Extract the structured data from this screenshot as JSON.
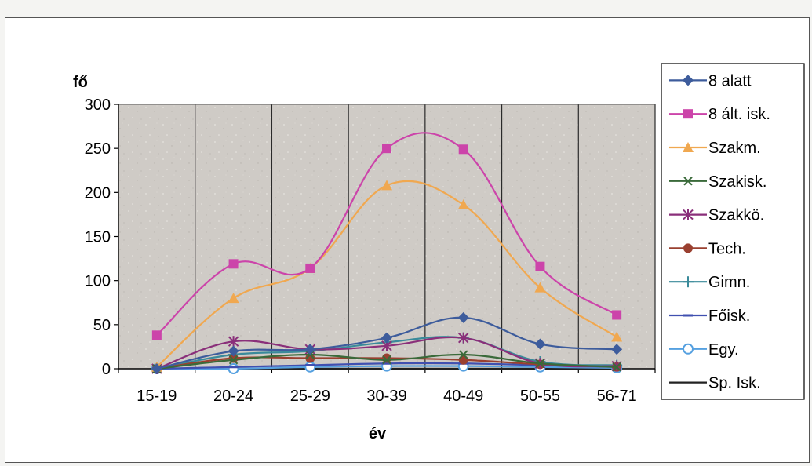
{
  "chart_data": {
    "type": "line",
    "categories": [
      "15-19",
      "20-24",
      "25-29",
      "30-39",
      "40-49",
      "50-55",
      "56-71"
    ],
    "ylabel": "fő",
    "xlabel": "év",
    "ylim": [
      0,
      300
    ],
    "yticks": [
      0,
      50,
      100,
      150,
      200,
      250,
      300
    ],
    "grid": "vertical lines on category boundaries",
    "legend_position": "right",
    "series": [
      {
        "name": "8 alatt",
        "color": "#3d5c9c",
        "marker": "diamond",
        "values": [
          0,
          20,
          22,
          35,
          58,
          28,
          22
        ]
      },
      {
        "name": "8 ált. isk.",
        "color": "#cc44aa",
        "marker": "square",
        "values": [
          38,
          119,
          114,
          250,
          249,
          116,
          61
        ]
      },
      {
        "name": "Szakm.",
        "color": "#f0a850",
        "marker": "triangle",
        "values": [
          2,
          80,
          114,
          208,
          186,
          92,
          36
        ]
      },
      {
        "name": "Szakisk.",
        "color": "#3a6a3a",
        "marker": "x",
        "values": [
          0,
          10,
          16,
          10,
          16,
          6,
          2
        ]
      },
      {
        "name": "Szakkö.",
        "color": "#8a2f7a",
        "marker": "asterisk",
        "values": [
          0,
          31,
          22,
          26,
          35,
          6,
          3
        ]
      },
      {
        "name": "Tech.",
        "color": "#9a4030",
        "marker": "circle",
        "values": [
          0,
          12,
          12,
          12,
          10,
          5,
          2
        ]
      },
      {
        "name": "Gimn.",
        "color": "#3a8a9a",
        "marker": "plus",
        "values": [
          0,
          16,
          20,
          30,
          35,
          8,
          4
        ]
      },
      {
        "name": "Főisk.",
        "color": "#4050b0",
        "marker": "dash",
        "values": [
          0,
          2,
          4,
          6,
          6,
          4,
          2
        ]
      },
      {
        "name": "Egy.",
        "color": "#55a0e0",
        "marker": "ocircle",
        "values": [
          0,
          0,
          2,
          3,
          3,
          2,
          1
        ]
      },
      {
        "name": "Sp. Isk.",
        "color": "#222222",
        "marker": "none",
        "values": [
          0,
          0,
          0,
          0,
          0,
          0,
          0
        ]
      }
    ]
  }
}
